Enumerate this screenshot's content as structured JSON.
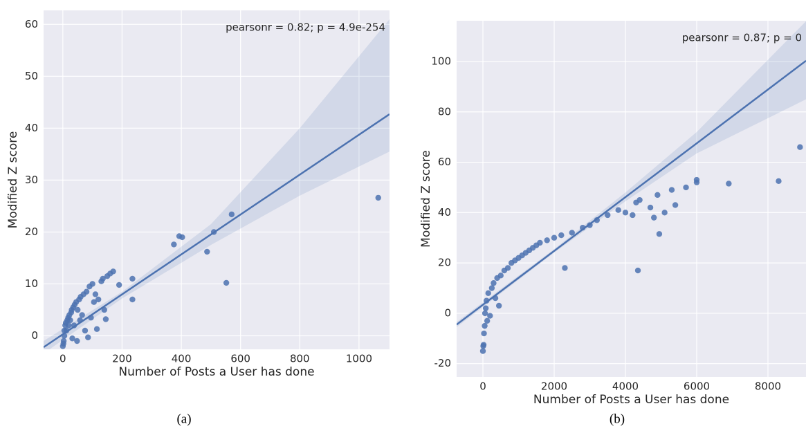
{
  "chart_data": [
    {
      "type": "scatter",
      "caption": "(a)",
      "xlabel": "Number of Posts a User has done",
      "ylabel": "Modified Z score",
      "annotation": "pearsonr = 0.82; p = 4.9e-254",
      "color": "#4c72b0",
      "grid": true,
      "xlim": [
        -65,
        1103
      ],
      "ylim": [
        -2.6,
        62.7
      ],
      "xticks": [
        0,
        200,
        400,
        600,
        800,
        1000
      ],
      "yticks": [
        0,
        10,
        20,
        30,
        40,
        50,
        60
      ],
      "x": [
        0,
        2,
        3,
        5,
        5,
        8,
        10,
        12,
        15,
        18,
        20,
        22,
        25,
        28,
        30,
        32,
        35,
        38,
        40,
        45,
        48,
        50,
        55,
        58,
        60,
        65,
        70,
        75,
        80,
        85,
        90,
        95,
        100,
        105,
        110,
        115,
        120,
        130,
        135,
        140,
        145,
        150,
        160,
        170,
        190,
        235,
        235,
        375,
        393,
        403,
        487,
        510,
        552,
        570,
        1065
      ],
      "y": [
        -2,
        -1.5,
        -1,
        0,
        1,
        2,
        2.5,
        1,
        3,
        3.5,
        2,
        4,
        3,
        4.5,
        5,
        -0.5,
        5.5,
        2,
        6,
        6.5,
        -1,
        5,
        7,
        3,
        7.5,
        4,
        8,
        1,
        8.5,
        -0.3,
        9.5,
        3.5,
        10,
        6.5,
        8,
        1.3,
        7,
        10.5,
        11,
        5,
        3.2,
        11.5,
        12,
        12.4,
        9.8,
        11,
        7,
        17.6,
        19.2,
        19,
        16.2,
        20,
        10.2,
        23.4,
        26.6
      ],
      "fit": {
        "x": [
          -65,
          1103
        ],
        "y": [
          -2.2,
          42.7
        ]
      },
      "ci": {
        "x": [
          -65,
          200,
          500,
          800,
          1103
        ],
        "upper": [
          -1.0,
          8.5,
          21.5,
          40,
          61
        ],
        "lower": [
          -3.4,
          7.2,
          17.5,
          27,
          35.5
        ]
      }
    },
    {
      "type": "scatter",
      "caption": "(b)",
      "xlabel": "Number of Posts a User has done",
      "ylabel": "Modified Z score",
      "annotation": "pearsonr = 0.87; p = 0",
      "color": "#4c72b0",
      "grid": true,
      "xlim": [
        -738,
        9068
      ],
      "ylim": [
        -25.3,
        116.2
      ],
      "xticks": [
        0,
        2000,
        4000,
        6000,
        8000
      ],
      "yticks": [
        -20,
        0,
        20,
        40,
        60,
        80,
        100
      ],
      "x": [
        0,
        10,
        20,
        30,
        50,
        60,
        80,
        100,
        120,
        150,
        200,
        250,
        300,
        350,
        400,
        450,
        500,
        600,
        700,
        800,
        900,
        1000,
        1100,
        1200,
        1300,
        1400,
        1500,
        1600,
        1800,
        2000,
        2200,
        2300,
        2500,
        2800,
        3000,
        3200,
        3500,
        3800,
        4000,
        4200,
        4300,
        4350,
        4400,
        4700,
        4800,
        4900,
        4950,
        5100,
        5300,
        5400,
        5700,
        6000,
        6000,
        6900,
        8300,
        8900
      ],
      "y": [
        -15,
        -13,
        -12.5,
        -8,
        -5,
        0,
        2,
        5,
        -3,
        8,
        -1,
        10,
        12,
        6,
        14,
        3,
        15,
        17,
        18,
        20,
        21,
        22,
        23,
        24,
        25,
        26,
        27,
        28,
        29,
        30,
        31,
        18,
        32,
        34,
        35,
        37,
        39,
        41,
        40,
        39,
        44,
        17,
        45,
        42,
        38,
        47,
        31.5,
        40,
        49,
        43,
        50,
        52,
        53,
        51.5,
        52.5,
        66
      ],
      "fit": {
        "x": [
          -738,
          9068
        ],
        "y": [
          -4.5,
          100.3
        ]
      },
      "ci": {
        "x": [
          -738,
          2000,
          4000,
          6000,
          9068
        ],
        "upper": [
          -3.5,
          25.5,
          48,
          72,
          116
        ],
        "lower": [
          -5.5,
          24.1,
          44.5,
          63.5,
          85
        ]
      }
    }
  ]
}
